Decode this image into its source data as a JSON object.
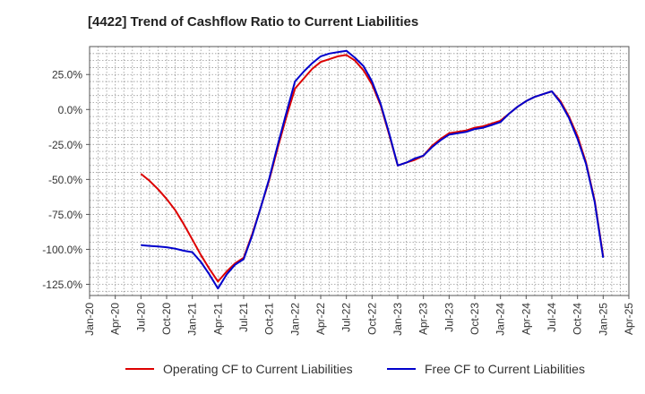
{
  "chart_data": {
    "type": "line",
    "title": "[4422]  Trend of Cashflow Ratio to Current Liabilities",
    "xlabel": "",
    "ylabel": "",
    "x_ticks": [
      "Jan-20",
      "Apr-20",
      "Jul-20",
      "Oct-20",
      "Jan-21",
      "Apr-21",
      "Jul-21",
      "Oct-21",
      "Jan-22",
      "Apr-22",
      "Jul-22",
      "Oct-22",
      "Jan-23",
      "Apr-23",
      "Jul-23",
      "Oct-23",
      "Jan-24",
      "Apr-24",
      "Jul-24",
      "Oct-24",
      "Jan-25",
      "Apr-25"
    ],
    "y_ticks": [
      "25.0%",
      "0.0%",
      "-25.0%",
      "-50.0%",
      "-75.0%",
      "-100.0%",
      "-125.0%"
    ],
    "y_tick_values": [
      25,
      0,
      -25,
      -50,
      -75,
      -100,
      -125
    ],
    "ylim": [
      -133,
      45
    ],
    "grid": true,
    "legend_position": "bottom",
    "series": [
      {
        "name": "Operating CF to Current Liabilities",
        "color": "#dd0000",
        "points": [
          [
            "Jul-20",
            -46
          ],
          [
            "Aug-20",
            -51
          ],
          [
            "Sep-20",
            -57
          ],
          [
            "Oct-20",
            -64
          ],
          [
            "Nov-20",
            -72
          ],
          [
            "Dec-20",
            -82
          ],
          [
            "Jan-21",
            -93
          ],
          [
            "Feb-21",
            -104
          ],
          [
            "Mar-21",
            -114
          ],
          [
            "Apr-21",
            -123
          ],
          [
            "May-21",
            -116
          ],
          [
            "Jun-21",
            -110
          ],
          [
            "Jul-21",
            -106
          ],
          [
            "Aug-21",
            -89
          ],
          [
            "Sep-21",
            -70
          ],
          [
            "Oct-21",
            -50
          ],
          [
            "Nov-21",
            -27
          ],
          [
            "Dec-21",
            -5
          ],
          [
            "Jan-22",
            15
          ],
          [
            "Feb-22",
            22
          ],
          [
            "Mar-22",
            29
          ],
          [
            "Apr-22",
            34
          ],
          [
            "May-22",
            36
          ],
          [
            "Jun-22",
            38
          ],
          [
            "Jul-22",
            39
          ],
          [
            "Aug-22",
            35
          ],
          [
            "Sep-22",
            28
          ],
          [
            "Oct-22",
            18
          ],
          [
            "Nov-22",
            3
          ],
          [
            "Dec-22",
            -18
          ],
          [
            "Jan-23",
            -40
          ],
          [
            "Feb-23",
            -38
          ],
          [
            "Mar-23",
            -36
          ],
          [
            "Apr-23",
            -33
          ],
          [
            "May-23",
            -26
          ],
          [
            "Jun-23",
            -21
          ],
          [
            "Jul-23",
            -17
          ],
          [
            "Aug-23",
            -16
          ],
          [
            "Sep-23",
            -15
          ],
          [
            "Oct-23",
            -13
          ],
          [
            "Nov-23",
            -12
          ],
          [
            "Dec-23",
            -10
          ],
          [
            "Jan-24",
            -8
          ],
          [
            "Feb-24",
            -3
          ],
          [
            "Mar-24",
            2
          ],
          [
            "Apr-24",
            6
          ],
          [
            "May-24",
            9
          ],
          [
            "Jun-24",
            11
          ],
          [
            "Jul-24",
            13
          ],
          [
            "Aug-24",
            6
          ],
          [
            "Sep-24",
            -5
          ],
          [
            "Oct-24",
            -19
          ],
          [
            "Nov-24",
            -38
          ],
          [
            "Dec-24",
            -65
          ],
          [
            "Jan-25",
            -105
          ]
        ]
      },
      {
        "name": "Free CF to Current Liabilities",
        "color": "#0000cc",
        "points": [
          [
            "Jul-20",
            -97
          ],
          [
            "Aug-20",
            -97.5
          ],
          [
            "Sep-20",
            -98
          ],
          [
            "Oct-20",
            -98.5
          ],
          [
            "Nov-20",
            -99.5
          ],
          [
            "Dec-20",
            -101
          ],
          [
            "Jan-21",
            -102
          ],
          [
            "Feb-21",
            -109
          ],
          [
            "Mar-21",
            -118
          ],
          [
            "Apr-21",
            -128
          ],
          [
            "May-21",
            -118
          ],
          [
            "Jun-21",
            -111
          ],
          [
            "Jul-21",
            -107
          ],
          [
            "Aug-21",
            -90
          ],
          [
            "Sep-21",
            -70
          ],
          [
            "Oct-21",
            -49
          ],
          [
            "Nov-21",
            -25
          ],
          [
            "Dec-21",
            -2
          ],
          [
            "Jan-22",
            20
          ],
          [
            "Feb-22",
            27
          ],
          [
            "Mar-22",
            33
          ],
          [
            "Apr-22",
            38
          ],
          [
            "May-22",
            40
          ],
          [
            "Jun-22",
            41
          ],
          [
            "Jul-22",
            42
          ],
          [
            "Aug-22",
            37
          ],
          [
            "Sep-22",
            31
          ],
          [
            "Oct-22",
            20
          ],
          [
            "Nov-22",
            4
          ],
          [
            "Dec-22",
            -17
          ],
          [
            "Jan-23",
            -40
          ],
          [
            "Feb-23",
            -38
          ],
          [
            "Mar-23",
            -35
          ],
          [
            "Apr-23",
            -33
          ],
          [
            "May-23",
            -27
          ],
          [
            "Jun-23",
            -22
          ],
          [
            "Jul-23",
            -18
          ],
          [
            "Aug-23",
            -17
          ],
          [
            "Sep-23",
            -16
          ],
          [
            "Oct-23",
            -14
          ],
          [
            "Nov-23",
            -13
          ],
          [
            "Dec-23",
            -11
          ],
          [
            "Jan-24",
            -9
          ],
          [
            "Feb-24",
            -3
          ],
          [
            "Mar-24",
            2
          ],
          [
            "Apr-24",
            6
          ],
          [
            "May-24",
            9
          ],
          [
            "Jun-24",
            11
          ],
          [
            "Jul-24",
            13
          ],
          [
            "Aug-24",
            5
          ],
          [
            "Sep-24",
            -6
          ],
          [
            "Oct-24",
            -21
          ],
          [
            "Nov-24",
            -39
          ],
          [
            "Dec-24",
            -66
          ],
          [
            "Jan-25",
            -106
          ]
        ]
      }
    ]
  }
}
